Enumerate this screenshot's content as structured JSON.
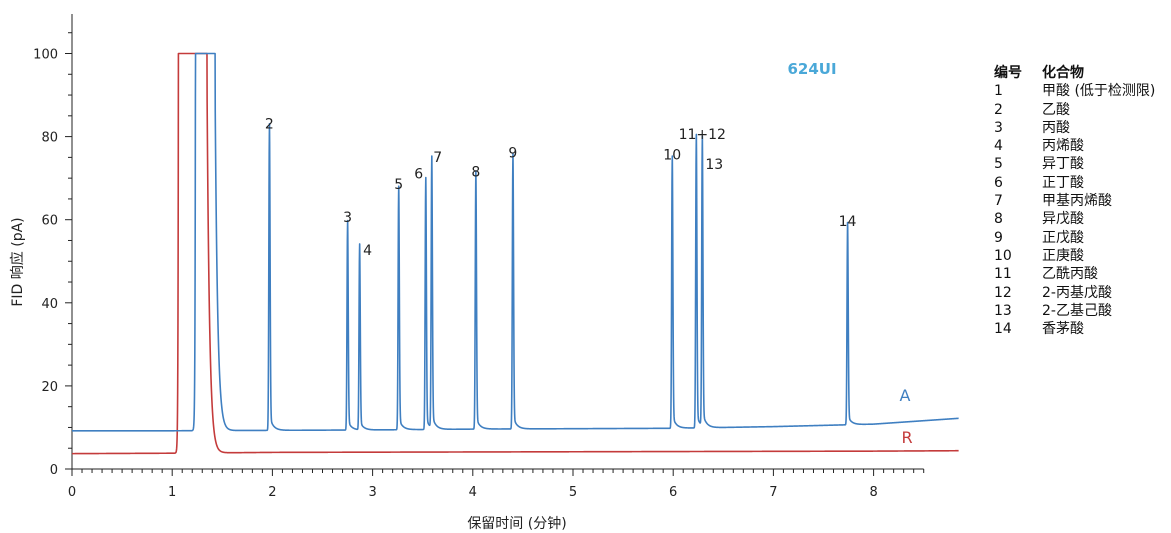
{
  "chart_data": {
    "type": "line",
    "column_label": "624UI",
    "xlabel": "保留时间 (分钟)",
    "ylabel": "FID 响应 (pA)",
    "xlim": [
      0,
      8.85
    ],
    "ylim": [
      0,
      110
    ],
    "x_ticks": [
      "0",
      "1",
      "2",
      "3",
      "4",
      "5",
      "6",
      "7",
      "8"
    ],
    "y_ticks": [
      "0",
      "20",
      "40",
      "60",
      "80",
      "100"
    ],
    "series": [
      {
        "name": "A",
        "color": "#3f7fc1",
        "baseline": [
          [
            0,
            9.2
          ],
          [
            1.0,
            9.2
          ],
          [
            2.0,
            9.3
          ],
          [
            3.0,
            9.4
          ],
          [
            4.0,
            9.6
          ],
          [
            5.0,
            9.7
          ],
          [
            6.0,
            9.8
          ],
          [
            7.0,
            10.2
          ],
          [
            8.0,
            10.8
          ],
          [
            8.85,
            12.2
          ]
        ],
        "solvent_peak": {
          "start": 1.22,
          "end": 1.44,
          "top": 100
        },
        "peaks": [
          {
            "label": "2",
            "rt": 1.97,
            "height": 80.5
          },
          {
            "label": "3",
            "rt": 2.75,
            "height": 58.0
          },
          {
            "label": "4",
            "rt": 2.87,
            "height": 52.5
          },
          {
            "label": "5",
            "rt": 3.26,
            "height": 66.0
          },
          {
            "label": "6",
            "rt": 3.53,
            "height": 68.0
          },
          {
            "label": "7",
            "rt": 3.59,
            "height": 72.5
          },
          {
            "label": "8",
            "rt": 4.03,
            "height": 69.0
          },
          {
            "label": "9",
            "rt": 4.4,
            "height": 73.5
          },
          {
            "label": "10",
            "rt": 5.99,
            "height": 73.0
          },
          {
            "label": "11+12",
            "rt": 6.23,
            "height": 78.0
          },
          {
            "label": "13",
            "rt": 6.29,
            "height": 77.0
          },
          {
            "label": "14",
            "rt": 7.74,
            "height": 57.0
          }
        ]
      },
      {
        "name": "R",
        "color": "#c43b3b",
        "baseline": [
          [
            0,
            3.7
          ],
          [
            1.0,
            3.8
          ],
          [
            2.0,
            4.0
          ],
          [
            4.0,
            4.1
          ],
          [
            6.0,
            4.2
          ],
          [
            8.0,
            4.3
          ],
          [
            8.85,
            4.4
          ]
        ],
        "solvent_peak": {
          "start": 1.05,
          "end": 1.36,
          "top": 100
        },
        "peaks": [
          {
            "label": "",
            "rt": 1.14,
            "height": 41.0
          }
        ]
      }
    ],
    "legend": {
      "headers": [
        "编号",
        "化合物"
      ],
      "rows": [
        [
          "1",
          "甲酸 (低于检测限)"
        ],
        [
          "2",
          "乙酸"
        ],
        [
          "3",
          "丙酸"
        ],
        [
          "4",
          "丙烯酸"
        ],
        [
          "5",
          "异丁酸"
        ],
        [
          "6",
          "正丁酸"
        ],
        [
          "7",
          "甲基丙烯酸"
        ],
        [
          "8",
          "异戊酸"
        ],
        [
          "9",
          "正戊酸"
        ],
        [
          "10",
          "正庚酸"
        ],
        [
          "11",
          "乙酰丙酸"
        ],
        [
          "12",
          "2-丙基戊酸"
        ],
        [
          "13",
          "2-乙基己酸"
        ],
        [
          "14",
          "香茅酸"
        ]
      ]
    }
  }
}
